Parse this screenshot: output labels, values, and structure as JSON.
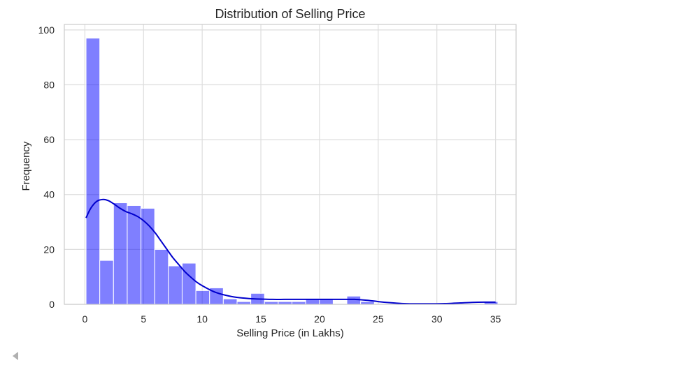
{
  "chart_data": {
    "type": "bar",
    "title": "Distribution of Selling Price",
    "xlabel": "Selling Price (in Lakhs)",
    "ylabel": "Frequency",
    "xlim": [
      -1.75,
      36.75
    ],
    "ylim": [
      0,
      102
    ],
    "xticks": [
      0,
      5,
      10,
      15,
      20,
      25,
      30,
      35
    ],
    "yticks": [
      0,
      20,
      40,
      60,
      80,
      100
    ],
    "grid": true,
    "bar_color": "#0000ff",
    "bar_opacity": 0.5,
    "kde_color": "#0000cc",
    "bins": {
      "edges": [
        0.1,
        1.27,
        2.44,
        3.61,
        4.78,
        5.95,
        7.12,
        8.29,
        9.46,
        10.63,
        11.8,
        12.97,
        14.14,
        15.31,
        16.48,
        17.65,
        18.82,
        19.99,
        21.16,
        22.33,
        23.5,
        24.67,
        25.84,
        27.01,
        28.18,
        29.35,
        30.52,
        31.69,
        32.86,
        34.03,
        35.2
      ],
      "counts": [
        97,
        16,
        37,
        36,
        35,
        20,
        14,
        15,
        5,
        6,
        2,
        1,
        4,
        1,
        1,
        1,
        2,
        2,
        0,
        3,
        1,
        0,
        0,
        0,
        0,
        0,
        0,
        0,
        0,
        1
      ]
    },
    "kde": {
      "x": [
        0.1,
        0.5,
        1.0,
        1.5,
        2.0,
        2.5,
        3.0,
        3.5,
        4.0,
        4.5,
        5.0,
        5.5,
        6.0,
        6.5,
        7.0,
        7.5,
        8.0,
        8.5,
        9.0,
        9.5,
        10,
        11,
        12,
        13,
        14,
        15,
        16,
        17,
        18,
        19,
        20,
        21,
        22,
        23,
        24,
        25,
        26,
        27,
        28,
        29,
        30,
        31,
        32,
        33,
        34,
        35
      ],
      "y": [
        31.5,
        35,
        37.5,
        38.2,
        37.8,
        36.5,
        35,
        33.8,
        33,
        32,
        30.5,
        28.5,
        26,
        23,
        20,
        17,
        14.5,
        12,
        10,
        8.2,
        6.8,
        4.6,
        3.3,
        2.5,
        2.1,
        1.9,
        1.8,
        1.8,
        1.8,
        1.8,
        1.8,
        1.8,
        1.8,
        1.8,
        1.5,
        1,
        0.6,
        0.3,
        0.2,
        0.2,
        0.2,
        0.3,
        0.5,
        0.7,
        0.8,
        0.8
      ]
    }
  },
  "ui": {
    "scroll_icon": "triangle-left-icon"
  }
}
